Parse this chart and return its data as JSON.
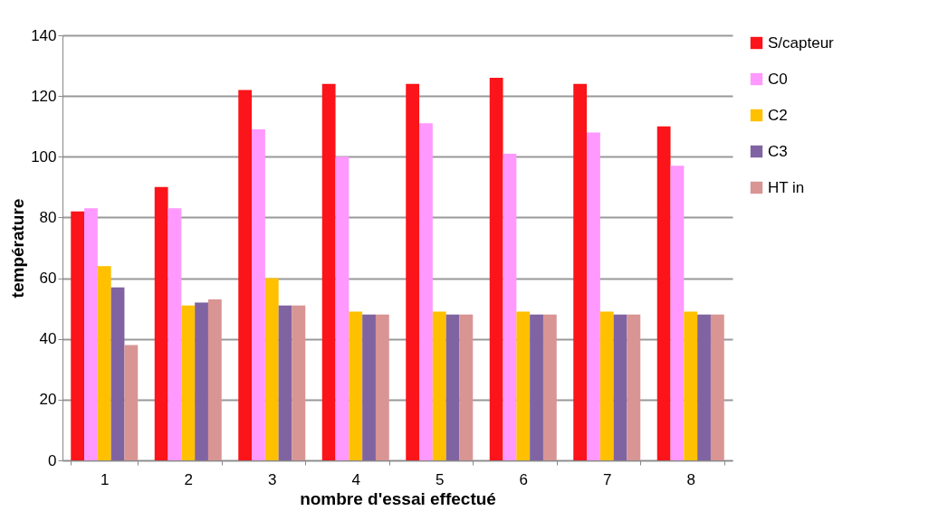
{
  "chart_data": {
    "type": "bar",
    "xlabel": "nombre d'essai effectué",
    "ylabel": "température",
    "categories": [
      "1",
      "2",
      "3",
      "4",
      "5",
      "6",
      "7",
      "8"
    ],
    "series": [
      {
        "name": "S/capteur",
        "color": "#fb1419",
        "values": [
          82,
          90,
          122,
          124,
          124,
          126,
          124,
          110
        ]
      },
      {
        "name": "C0",
        "color": "#ff99ff",
        "values": [
          83,
          83,
          109,
          100,
          111,
          101,
          108,
          97
        ]
      },
      {
        "name": "C2",
        "color": "#ffc000",
        "values": [
          64,
          51,
          60,
          49,
          49,
          49,
          49,
          49
        ]
      },
      {
        "name": "C3",
        "color": "#8064a2",
        "values": [
          57,
          52,
          51,
          48,
          48,
          48,
          48,
          48
        ]
      },
      {
        "name": "HT in",
        "color": "#d99594",
        "values": [
          38,
          53,
          51,
          48,
          48,
          48,
          48,
          48
        ]
      }
    ],
    "ylim": [
      0,
      140
    ],
    "yticks": [
      0,
      20,
      40,
      60,
      80,
      100,
      120,
      140
    ],
    "grid": "y",
    "legend": "right"
  }
}
